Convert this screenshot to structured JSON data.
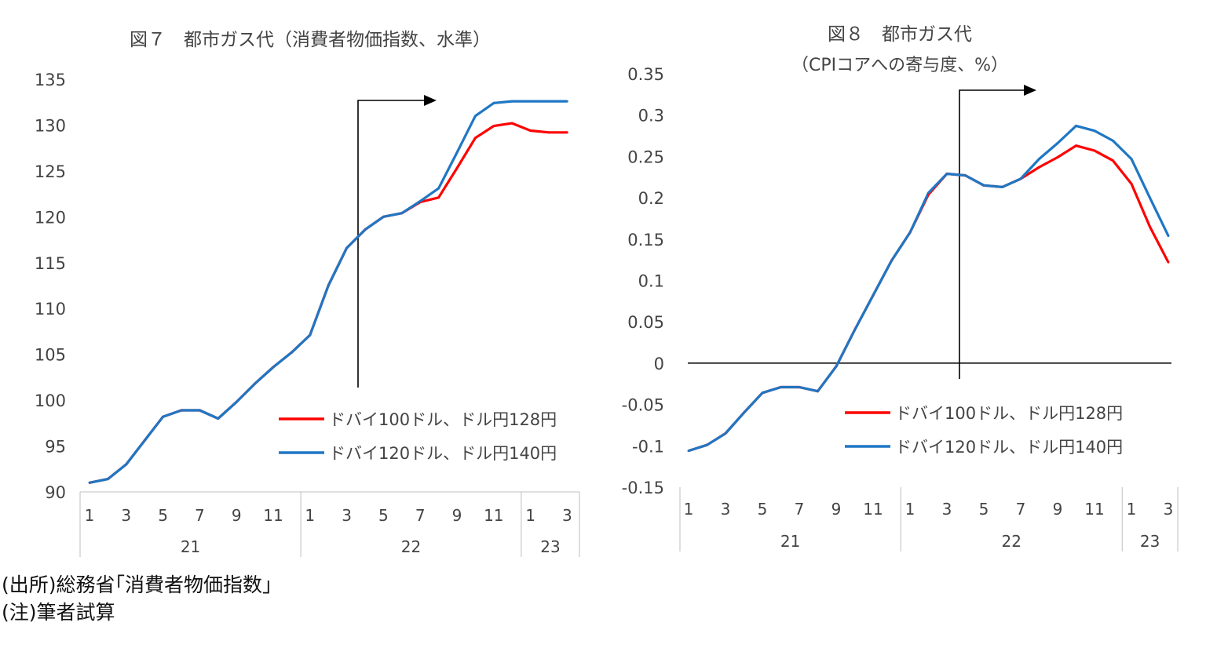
{
  "chart_data": [
    {
      "type": "line",
      "title": "図７　都市ガス代（消費者物価指数、水準）",
      "xlabel": "",
      "ylabel": "",
      "ylim": [
        90,
        135
      ],
      "y_ticks": [
        "135",
        "130",
        "125",
        "120",
        "115",
        "110",
        "105",
        "100",
        "95",
        "90"
      ],
      "x_month_labels": [
        "1",
        "3",
        "5",
        "7",
        "9",
        "11",
        "1",
        "3",
        "5",
        "7",
        "9",
        "11",
        "1",
        "3"
      ],
      "x_year_labels": [
        "21",
        "22",
        "23"
      ],
      "x": [
        "21-01",
        "21-02",
        "21-03",
        "21-04",
        "21-05",
        "21-06",
        "21-07",
        "21-08",
        "21-09",
        "21-10",
        "21-11",
        "21-12",
        "22-01",
        "22-02",
        "22-03",
        "22-04",
        "22-05",
        "22-06",
        "22-07",
        "22-08",
        "22-09",
        "22-10",
        "22-11",
        "22-12",
        "23-01",
        "23-02",
        "23-03"
      ],
      "series": [
        {
          "name": "ドバイ100ドル、ドル円128円",
          "color": "#ff0000",
          "values": [
            91.0,
            91.4,
            93.0,
            95.6,
            98.2,
            98.9,
            98.9,
            98.0,
            99.8,
            101.8,
            103.6,
            105.2,
            107.1,
            112.5,
            116.6,
            118.6,
            120.0,
            120.4,
            121.6,
            122.1,
            125.3,
            128.6,
            129.9,
            130.2,
            129.4,
            129.2,
            129.2
          ]
        },
        {
          "name": "ドバイ120ドル、ドル円140円",
          "color": "#1f77c4",
          "values": [
            91.0,
            91.4,
            93.0,
            95.6,
            98.2,
            98.9,
            98.9,
            98.0,
            99.8,
            101.8,
            103.6,
            105.2,
            107.1,
            112.5,
            116.6,
            118.6,
            120.0,
            120.4,
            121.7,
            123.1,
            127.0,
            131.0,
            132.4,
            132.6,
            132.6,
            132.6,
            132.6
          ]
        }
      ],
      "annotation": "arrow"
    },
    {
      "type": "line",
      "title": "図８　都市ガス代",
      "subtitle": "（CPIコアへの寄与度、%）",
      "xlabel": "",
      "ylabel": "",
      "ylim": [
        -0.15,
        0.35
      ],
      "y_ticks": [
        "0.35",
        "0.3",
        "0.25",
        "0.2",
        "0.15",
        "0.1",
        "0.05",
        "0",
        "-0.05",
        "-0.1",
        "-0.15"
      ],
      "x_month_labels": [
        "1",
        "3",
        "5",
        "7",
        "9",
        "11",
        "1",
        "3",
        "5",
        "7",
        "9",
        "11",
        "1",
        "3"
      ],
      "x_year_labels": [
        "21",
        "22",
        "23"
      ],
      "x": [
        "21-01",
        "21-02",
        "21-03",
        "21-04",
        "21-05",
        "21-06",
        "21-07",
        "21-08",
        "21-09",
        "21-10",
        "21-11",
        "21-12",
        "22-01",
        "22-02",
        "22-03",
        "22-04",
        "22-05",
        "22-06",
        "22-07",
        "22-08",
        "22-09",
        "22-10",
        "22-11",
        "22-12",
        "23-01",
        "23-02",
        "23-03"
      ],
      "series": [
        {
          "name": "ドバイ100ドル、ドル円128円",
          "color": "#ff0000",
          "values": [
            -0.106,
            -0.099,
            -0.085,
            -0.06,
            -0.036,
            -0.029,
            -0.029,
            -0.034,
            -0.004,
            0.04,
            0.082,
            0.124,
            0.158,
            0.204,
            0.229,
            0.227,
            0.215,
            0.213,
            0.223,
            0.237,
            0.249,
            0.263,
            0.257,
            0.245,
            0.217,
            0.165,
            0.122
          ]
        },
        {
          "name": "ドバイ120ドル、ドル円140円",
          "color": "#1f77c4",
          "values": [
            -0.106,
            -0.099,
            -0.085,
            -0.06,
            -0.036,
            -0.029,
            -0.029,
            -0.034,
            -0.004,
            0.04,
            0.082,
            0.124,
            0.158,
            0.206,
            0.229,
            0.227,
            0.215,
            0.213,
            0.223,
            0.247,
            0.266,
            0.287,
            0.281,
            0.269,
            0.247,
            0.2,
            0.154
          ]
        }
      ],
      "annotation": "arrow"
    }
  ],
  "notes": {
    "source": "(出所)総務省｢消費者物価指数｣",
    "note": "(注)筆者試算"
  }
}
